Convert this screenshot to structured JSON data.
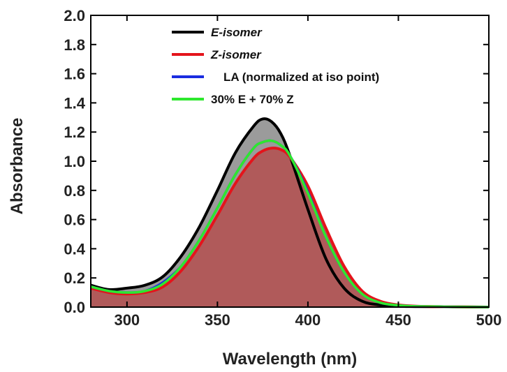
{
  "chart_data": {
    "type": "line",
    "xlabel": "Wavelength (nm)",
    "ylabel": "Absorbance",
    "xlim": [
      280,
      500
    ],
    "ylim": [
      0,
      2.0
    ],
    "x_ticks": [
      "300",
      "350",
      "400",
      "450",
      "500"
    ],
    "y_ticks": [
      "0.0",
      "0.2",
      "0.4",
      "0.6",
      "0.8",
      "1.0",
      "1.2",
      "1.4",
      "1.6",
      "1.8",
      "2.0"
    ],
    "legend_position": "top-left",
    "series": [
      {
        "name": "E-isomer",
        "color": "#000000",
        "fill": "#9b9b9b",
        "x": [
          280,
          290,
          300,
          310,
          320,
          330,
          340,
          350,
          360,
          370,
          375,
          380,
          385,
          390,
          400,
          410,
          420,
          430,
          440,
          450,
          460,
          480,
          500
        ],
        "y": [
          0.15,
          0.12,
          0.13,
          0.15,
          0.21,
          0.35,
          0.55,
          0.8,
          1.06,
          1.24,
          1.29,
          1.27,
          1.19,
          1.04,
          0.67,
          0.33,
          0.13,
          0.04,
          0.015,
          0.006,
          0.004,
          0.002,
          0.0
        ]
      },
      {
        "name": "Z-isomer",
        "color": "#e4141b",
        "fill": "#b05a5a",
        "x": [
          280,
          290,
          300,
          310,
          320,
          330,
          340,
          350,
          360,
          370,
          375,
          380,
          385,
          390,
          400,
          410,
          420,
          430,
          440,
          450,
          460,
          480,
          500
        ],
        "y": [
          0.13,
          0.1,
          0.09,
          0.1,
          0.14,
          0.25,
          0.42,
          0.63,
          0.85,
          1.02,
          1.07,
          1.09,
          1.08,
          1.03,
          0.83,
          0.54,
          0.28,
          0.11,
          0.04,
          0.015,
          0.006,
          0.002,
          0.0
        ]
      },
      {
        "name": "LA  (normalized at iso point)",
        "color": "#1a2de0",
        "x": [
          280,
          290,
          300,
          310,
          320,
          330,
          340,
          350,
          360,
          370,
          375,
          380,
          385,
          390,
          400,
          410,
          420,
          430,
          440,
          450,
          460,
          480,
          500
        ],
        "y": [
          0.14,
          0.11,
          0.1,
          0.11,
          0.17,
          0.28,
          0.46,
          0.68,
          0.91,
          1.09,
          1.13,
          1.14,
          1.11,
          1.04,
          0.79,
          0.48,
          0.24,
          0.09,
          0.03,
          0.012,
          0.005,
          0.002,
          0.0
        ]
      },
      {
        "name": "30% E + 70% Z",
        "color": "#2ee82e",
        "x": [
          280,
          290,
          300,
          310,
          320,
          330,
          340,
          350,
          360,
          370,
          375,
          380,
          385,
          390,
          400,
          410,
          420,
          430,
          440,
          450,
          460,
          480,
          500
        ],
        "y": [
          0.14,
          0.11,
          0.1,
          0.11,
          0.16,
          0.28,
          0.46,
          0.68,
          0.91,
          1.09,
          1.13,
          1.14,
          1.11,
          1.04,
          0.78,
          0.48,
          0.24,
          0.09,
          0.03,
          0.012,
          0.005,
          0.002,
          0.0
        ]
      }
    ]
  }
}
